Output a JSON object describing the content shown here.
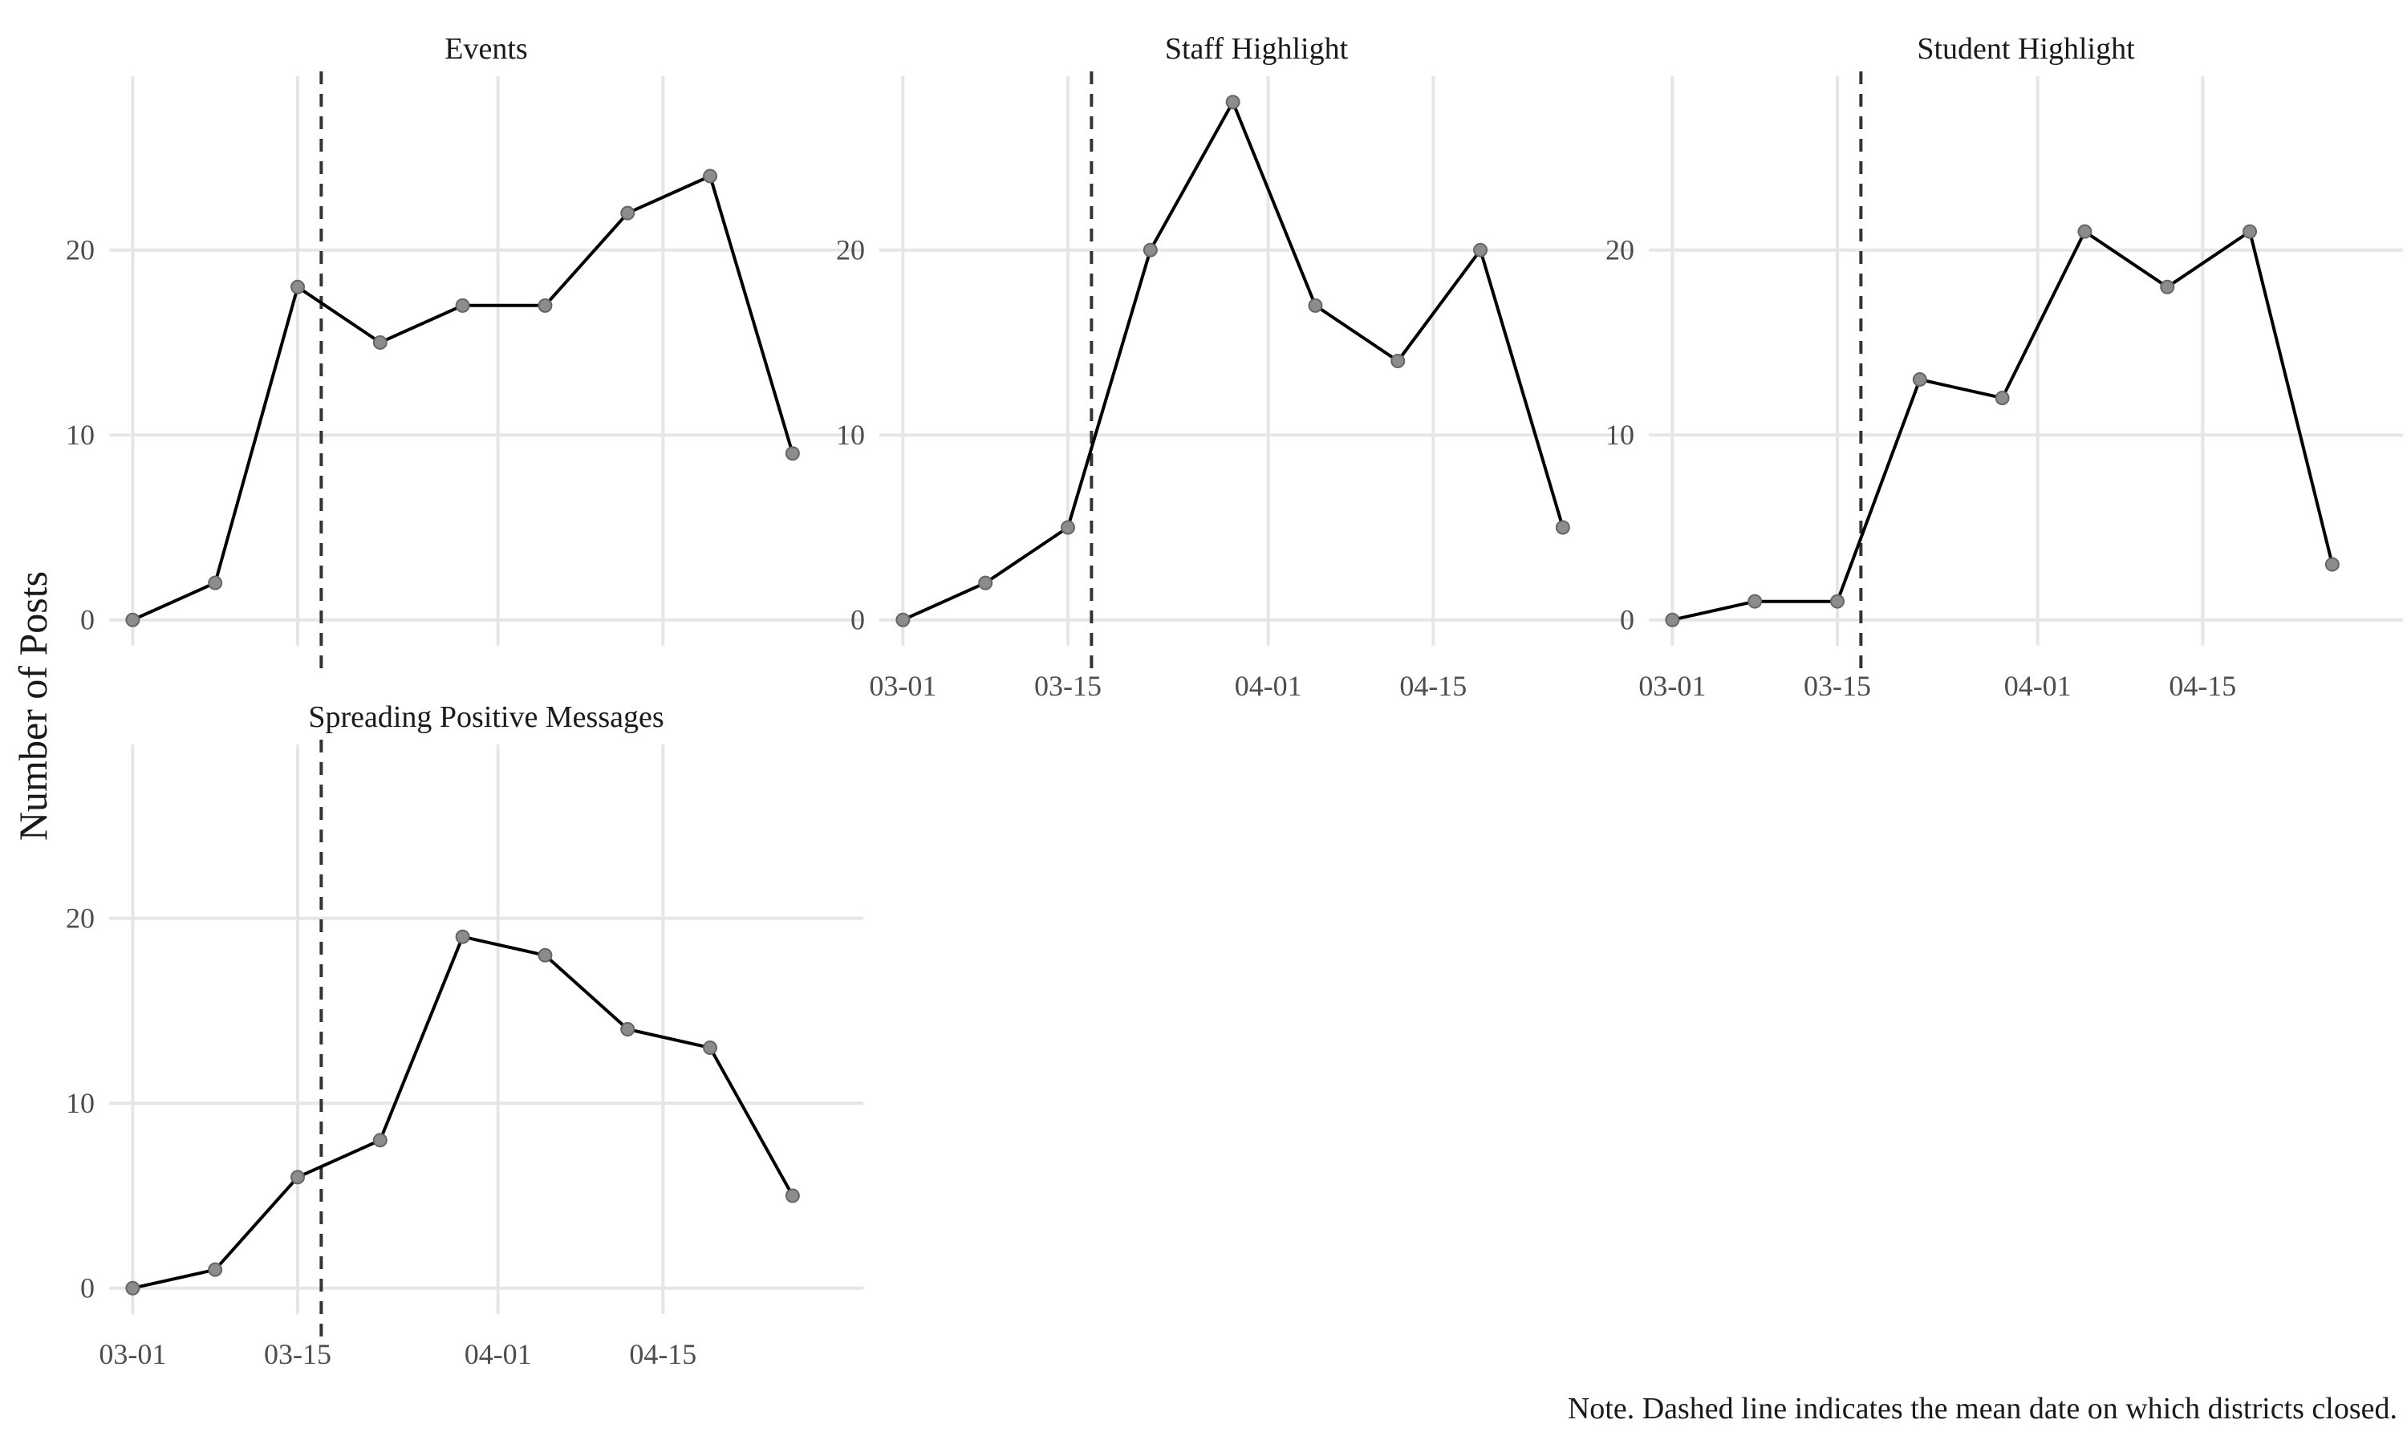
{
  "chart_data": {
    "type": "line",
    "ylabel": "Number of Posts",
    "xlabel": "",
    "caption": "Note. Dashed line indicates the mean date on which districts closed.",
    "x_ticks": [
      "03-01",
      "03-15",
      "04-01",
      "04-15"
    ],
    "x_tick_dates": [
      "2020-03-01",
      "2020-03-15",
      "2020-04-01",
      "2020-04-15"
    ],
    "y_ticks": [
      0,
      10,
      20
    ],
    "ylim": [
      -1.4,
      29.4
    ],
    "xlim": [
      "2020-02-28",
      "2020-05-02"
    ],
    "x": [
      "2020-03-01",
      "2020-03-08",
      "2020-03-15",
      "2020-03-22",
      "2020-03-29",
      "2020-04-05",
      "2020-04-12",
      "2020-04-19",
      "2020-04-26"
    ],
    "closure_date": "2020-03-17",
    "grid": true,
    "colors": {
      "line": "#000000",
      "point": "#8c8c8c",
      "grid": "#e6e6e6",
      "closure_line": "#333333"
    },
    "series": [
      {
        "name": "Events",
        "values": [
          0,
          2,
          18,
          15,
          17,
          17,
          22,
          24,
          9
        ]
      },
      {
        "name": "Staff Highlight",
        "values": [
          0,
          2,
          5,
          20,
          28,
          17,
          14,
          20,
          5
        ]
      },
      {
        "name": "Student Highlight",
        "values": [
          0,
          1,
          1,
          13,
          12,
          21,
          18,
          21,
          3
        ]
      },
      {
        "name": "Spreading Positive Messages",
        "values": [
          0,
          1,
          6,
          8,
          19,
          18,
          14,
          13,
          5
        ]
      }
    ]
  }
}
